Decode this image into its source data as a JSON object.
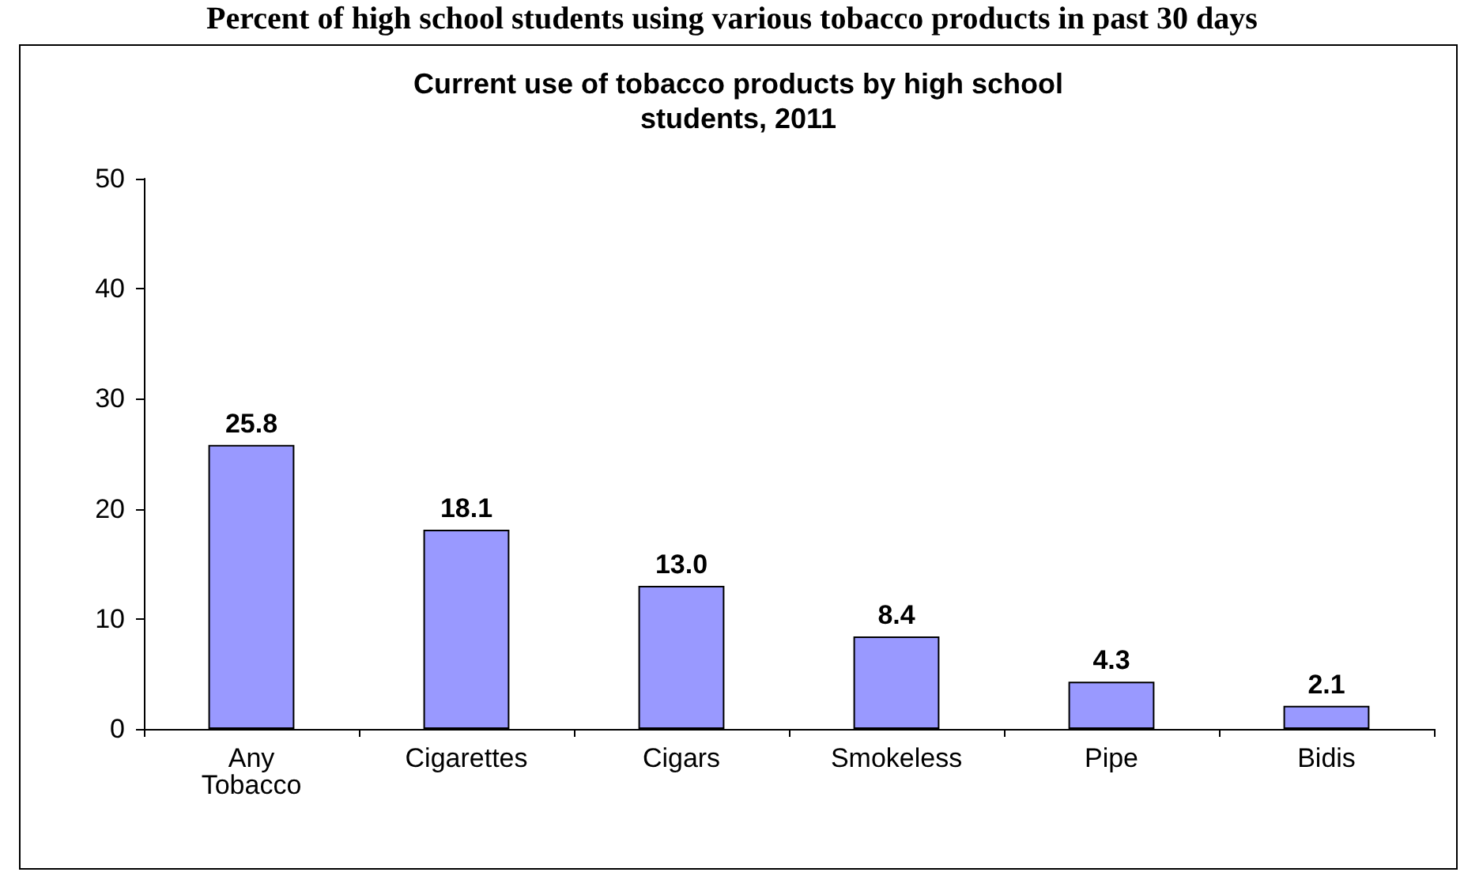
{
  "chart_data": {
    "type": "bar",
    "title": "Current use of tobacco products by high school\nstudents, 2011",
    "annotations": [
      "Percent of high school students using various tobacco products in past 30 days"
    ],
    "categories": [
      "Any Tobacco",
      "Cigarettes",
      "Cigars",
      "Smokeless",
      "Pipe",
      "Bidis"
    ],
    "values": [
      25.8,
      18.1,
      13.0,
      8.4,
      4.3,
      2.1
    ],
    "color": "#9999ff",
    "value_labels": [
      "25.8",
      "18.1",
      "13.0",
      "8.4",
      "4.3",
      "2.1"
    ],
    "ylim": [
      0,
      50
    ],
    "yticks": [
      0,
      10,
      20,
      30,
      40,
      50
    ],
    "grid": false
  }
}
